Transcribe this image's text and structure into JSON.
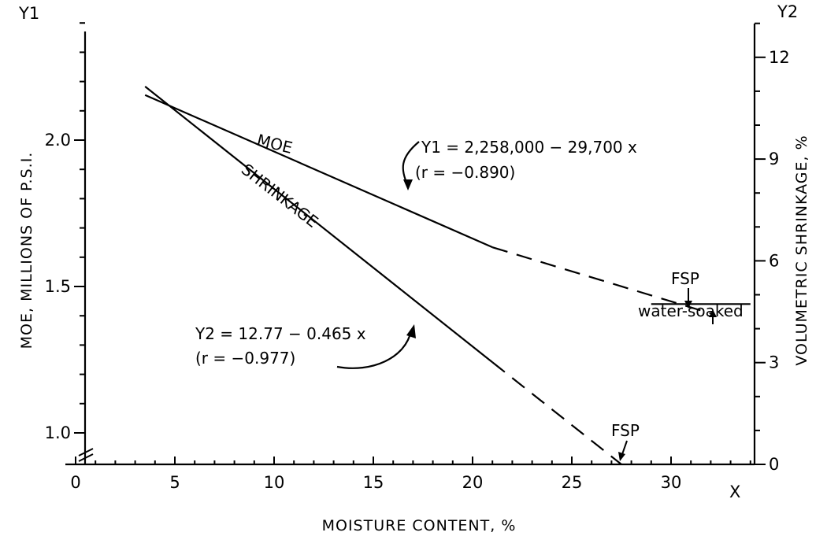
{
  "chart_data": {
    "type": "line",
    "xlabel": "MOISTURE CONTENT, %",
    "x_axis_symbol": "X",
    "y1_axis_symbol": "Y1",
    "y2_axis_symbol": "Y2",
    "y1label": "MOE, MILLIONS OF P.S.I.",
    "y2label": "VOLUMETRIC SHRINKAGE, %",
    "xlim": [
      0,
      35
    ],
    "y1lim": [
      0.94,
      2.6
    ],
    "y2lim": [
      0,
      13.6
    ],
    "xticks": [
      "0",
      "5",
      "10",
      "15",
      "20",
      "25",
      "30"
    ],
    "y1ticks": [
      "1.0",
      "1.5",
      "2.0",
      "2.5"
    ],
    "y2ticks": [
      "0",
      "3",
      "6",
      "9",
      "12"
    ],
    "series": [
      {
        "name": "MOE",
        "axis": "y1",
        "solid": [
          [
            3.5,
            2.154
          ],
          [
            21,
            1.634
          ]
        ],
        "dashed": [
          [
            21,
            1.634
          ],
          [
            32,
            1.408
          ]
        ]
      },
      {
        "name": "SHRINKAGE",
        "axis": "y2",
        "solid": [
          [
            3.5,
            11.14
          ],
          [
            21,
            3.01
          ]
        ],
        "dashed": [
          [
            21,
            3.01
          ],
          [
            27.5,
            0.0
          ]
        ]
      }
    ],
    "annotations": {
      "moe_equation": "Y1 = 2,258,000 − 29,700 x",
      "moe_r": "(r = −0.890)",
      "shrink_equation": "Y2 = 12.77 − 0.465 x",
      "shrink_r": "(r = −0.977)",
      "fsp_moe": "FSP",
      "fsp_shrink": "FSP",
      "water_soaked": "water-soaked",
      "water_soaked_moe": 1.44,
      "water_soaked_x": [
        29,
        34
      ]
    }
  }
}
